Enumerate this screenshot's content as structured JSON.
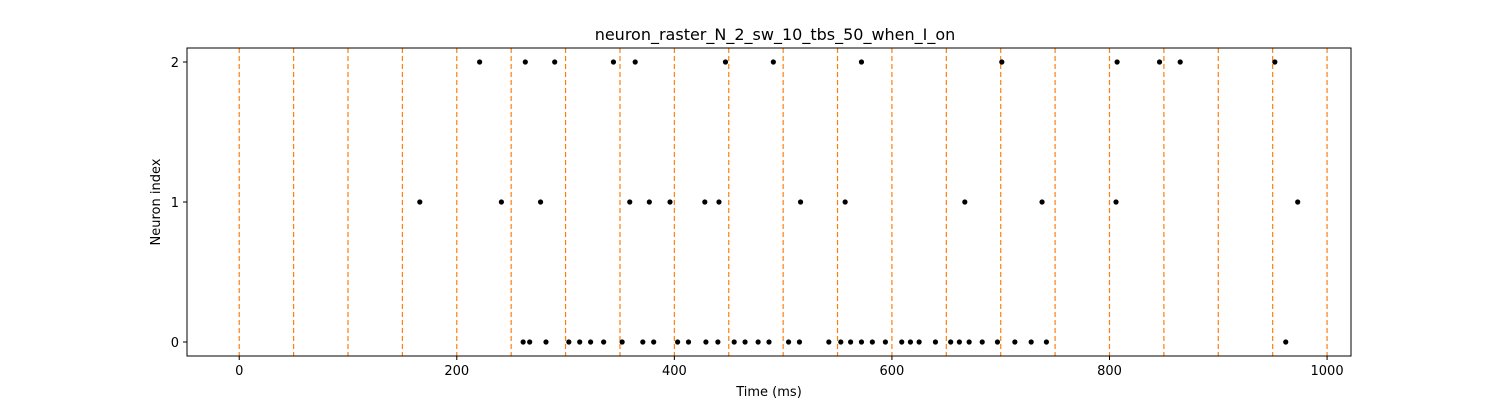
{
  "chart_data": {
    "type": "scatter",
    "title": "neuron_raster_N_2_sw_10_tbs_50_when_I_on",
    "xlabel": "Time (ms)",
    "ylabel": "Neuron index",
    "xlim": [
      -48,
      1022
    ],
    "ylim": [
      -0.1,
      2.1
    ],
    "xticks": [
      0,
      200,
      400,
      600,
      800,
      1000
    ],
    "yticks": [
      0,
      1,
      2
    ],
    "grid": false,
    "legend": "none",
    "marker_color": "#000000",
    "vline_color": "#ff7f0e",
    "vline_style": "dashed",
    "vlines": [
      0,
      50,
      100,
      150,
      200,
      250,
      300,
      350,
      400,
      450,
      500,
      550,
      600,
      650,
      700,
      750,
      800,
      850,
      900,
      950,
      1000
    ],
    "spikes": [
      {
        "neuron": 2,
        "times": [
          221,
          263,
          290,
          344,
          364,
          447,
          491,
          572,
          701,
          807,
          846,
          865,
          952
        ]
      },
      {
        "neuron": 1,
        "times": [
          166,
          241,
          277,
          359,
          377,
          396,
          428,
          441,
          516,
          557,
          667,
          738,
          806,
          973
        ]
      },
      {
        "neuron": 0,
        "times": [
          261,
          267,
          282,
          303,
          313,
          323,
          335,
          352,
          371,
          381,
          403,
          413,
          429,
          440,
          455,
          465,
          477,
          487,
          505,
          515,
          542,
          553,
          562,
          572,
          582,
          594,
          609,
          617,
          625,
          640,
          654,
          662,
          671,
          683,
          697,
          713,
          728,
          742,
          962
        ]
      }
    ]
  }
}
